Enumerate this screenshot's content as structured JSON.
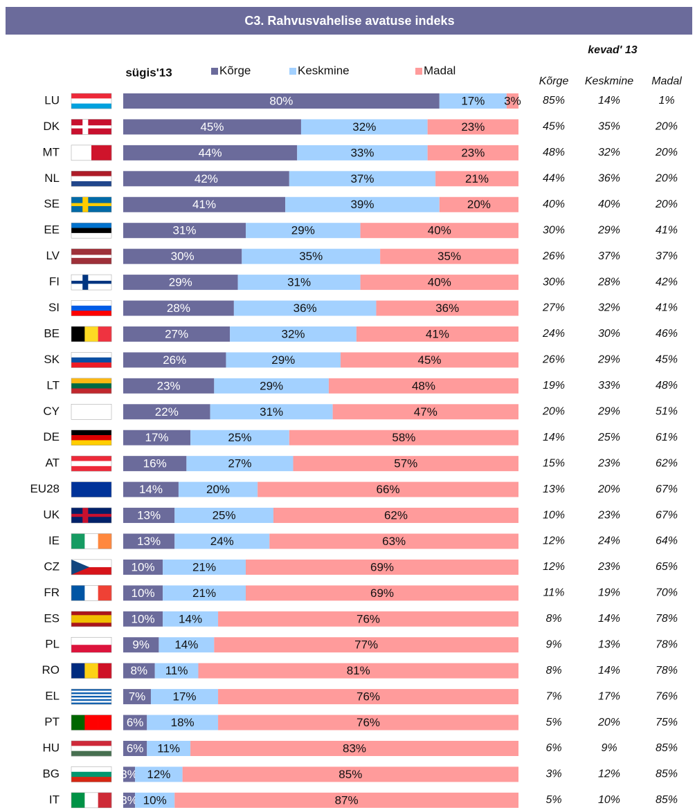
{
  "chart_data": {
    "type": "stacked_bar_horizontal",
    "title": "C3. Rahvusvahelise avatuse indeks",
    "period": "sügis'13",
    "categories": [
      "LU",
      "DK",
      "MT",
      "NL",
      "SE",
      "EE",
      "LV",
      "FI",
      "SI",
      "BE",
      "SK",
      "LT",
      "CY",
      "DE",
      "AT",
      "EU28",
      "UK",
      "IE",
      "CZ",
      "FR",
      "ES",
      "PL",
      "RO",
      "EL",
      "PT",
      "HU",
      "BG",
      "IT"
    ],
    "xlim": [
      0,
      100
    ],
    "series": [
      {
        "name": "Kõrge",
        "color": "#6b6b9b",
        "values": [
          80,
          45,
          44,
          42,
          41,
          31,
          30,
          29,
          28,
          27,
          26,
          23,
          22,
          17,
          16,
          14,
          13,
          13,
          10,
          10,
          10,
          9,
          8,
          7,
          6,
          6,
          3,
          3
        ],
        "value_labels": [
          "80%",
          "45%",
          "44%",
          "42%",
          "41%",
          "31%",
          "30%",
          "29%",
          "28%",
          "27%",
          "26%",
          "23%",
          "22%",
          "17%",
          "16%",
          "14%",
          "13%",
          "13%",
          "10%",
          "10%",
          "10%",
          "9%",
          "8%",
          "7%",
          "6%",
          "6%",
          "3%",
          "3%"
        ]
      },
      {
        "name": "Keskmine",
        "color": "#a3d1ff",
        "values": [
          17,
          32,
          33,
          37,
          39,
          29,
          35,
          31,
          36,
          32,
          29,
          29,
          31,
          25,
          27,
          20,
          25,
          24,
          21,
          21,
          14,
          14,
          11,
          17,
          18,
          11,
          12,
          10
        ],
        "value_labels": [
          "17%",
          "32%",
          "33%",
          "37%",
          "39%",
          "29%",
          "35%",
          "31%",
          "36%",
          "32%",
          "29%",
          "29%",
          "31%",
          "25%",
          "27%",
          "20%",
          "25%",
          "24%",
          "21%",
          "21%",
          "14%",
          "14%",
          "11%",
          "17%",
          "18%",
          "11%",
          "12%",
          "10%"
        ]
      },
      {
        "name": "Madal",
        "color": "#ff9b9b",
        "values": [
          3,
          23,
          23,
          21,
          20,
          40,
          35,
          40,
          36,
          41,
          45,
          48,
          47,
          58,
          57,
          66,
          62,
          63,
          69,
          69,
          76,
          77,
          81,
          76,
          76,
          83,
          85,
          87
        ],
        "value_labels": [
          "3%",
          "23%",
          "23%",
          "21%",
          "20%",
          "40%",
          "35%",
          "40%",
          "36%",
          "41%",
          "45%",
          "48%",
          "47%",
          "58%",
          "57%",
          "66%",
          "62%",
          "63%",
          "69%",
          "69%",
          "76%",
          "77%",
          "81%",
          "76%",
          "76%",
          "83%",
          "85%",
          "87%"
        ]
      }
    ],
    "table": {
      "title": "kevad' 13",
      "columns": [
        "Kõrge",
        "Keskmine",
        "Madal"
      ],
      "rows": [
        [
          "85%",
          "14%",
          "1%"
        ],
        [
          "45%",
          "35%",
          "20%"
        ],
        [
          "48%",
          "32%",
          "20%"
        ],
        [
          "44%",
          "36%",
          "20%"
        ],
        [
          "40%",
          "40%",
          "20%"
        ],
        [
          "30%",
          "29%",
          "41%"
        ],
        [
          "26%",
          "37%",
          "37%"
        ],
        [
          "30%",
          "28%",
          "42%"
        ],
        [
          "27%",
          "32%",
          "41%"
        ],
        [
          "24%",
          "30%",
          "46%"
        ],
        [
          "26%",
          "29%",
          "45%"
        ],
        [
          "19%",
          "33%",
          "48%"
        ],
        [
          "20%",
          "29%",
          "51%"
        ],
        [
          "14%",
          "25%",
          "61%"
        ],
        [
          "15%",
          "23%",
          "62%"
        ],
        [
          "13%",
          "20%",
          "67%"
        ],
        [
          "10%",
          "23%",
          "67%"
        ],
        [
          "12%",
          "24%",
          "64%"
        ],
        [
          "12%",
          "23%",
          "65%"
        ],
        [
          "11%",
          "19%",
          "70%"
        ],
        [
          "8%",
          "14%",
          "78%"
        ],
        [
          "9%",
          "13%",
          "78%"
        ],
        [
          "8%",
          "14%",
          "78%"
        ],
        [
          "7%",
          "17%",
          "76%"
        ],
        [
          "5%",
          "20%",
          "75%"
        ],
        [
          "6%",
          "9%",
          "85%"
        ],
        [
          "3%",
          "12%",
          "85%"
        ],
        [
          "5%",
          "10%",
          "85%"
        ]
      ]
    }
  }
}
